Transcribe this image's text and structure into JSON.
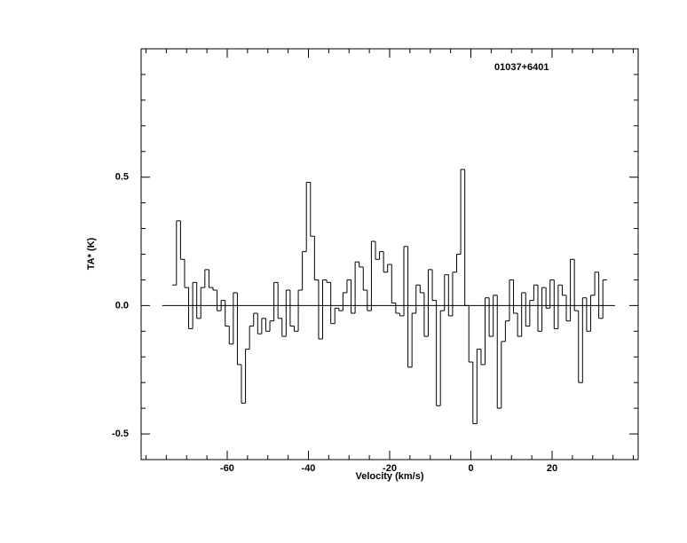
{
  "chart_data": {
    "type": "step",
    "title": "01037+6401",
    "xlabel": "Velocity (km/s)",
    "ylabel": "TA* (K)",
    "x": [
      -73,
      -72,
      -71,
      -70,
      -69,
      -68,
      -67,
      -66,
      -65,
      -64,
      -63,
      -62,
      -61,
      -60,
      -59,
      -58,
      -57,
      -56,
      -55,
      -54,
      -53,
      -52,
      -51,
      -50,
      -49,
      -48,
      -47,
      -46,
      -45,
      -44,
      -43,
      -42,
      -41,
      -40,
      -39,
      -38,
      -37,
      -36,
      -35,
      -34,
      -33,
      -32,
      -31,
      -30,
      -29,
      -28,
      -27,
      -26,
      -25,
      -24,
      -23,
      -22,
      -21,
      -20,
      -19,
      -18,
      -17,
      -16,
      -15,
      -14,
      -13,
      -12,
      -11,
      -10,
      -9,
      -8,
      -7,
      -6,
      -5,
      -4,
      -3,
      -2,
      -1,
      0,
      1,
      2,
      3,
      4,
      5,
      6,
      7,
      8,
      9,
      10,
      11,
      12,
      13,
      14,
      15,
      16,
      17,
      18,
      19,
      20,
      21,
      22,
      23,
      24,
      25,
      26,
      27,
      28,
      29,
      30,
      31,
      32,
      33
    ],
    "values": [
      0.08,
      0.33,
      0.18,
      0.07,
      -0.09,
      0.09,
      -0.05,
      0.07,
      0.14,
      0.07,
      0.06,
      -0.02,
      0.02,
      -0.08,
      -0.15,
      0.05,
      -0.23,
      -0.38,
      -0.17,
      -0.08,
      -0.03,
      -0.11,
      -0.05,
      -0.1,
      -0.06,
      0.09,
      -0.05,
      -0.12,
      0.06,
      -0.08,
      -0.1,
      0.06,
      0.21,
      0.48,
      0.27,
      0.1,
      -0.13,
      0.1,
      0.09,
      -0.07,
      -0.01,
      -0.02,
      0.05,
      0.1,
      -0.03,
      0.17,
      0.15,
      0.06,
      -0.02,
      0.25,
      0.18,
      0.21,
      0.13,
      0.16,
      0.01,
      -0.03,
      -0.04,
      0.23,
      -0.24,
      -0.03,
      0.08,
      0.05,
      -0.12,
      0.14,
      0.02,
      -0.39,
      -0.02,
      0.12,
      -0.04,
      0.13,
      0.2,
      0.53,
      0.0,
      -0.22,
      -0.46,
      -0.17,
      -0.23,
      0.03,
      -0.12,
      0.04,
      -0.4,
      -0.14,
      -0.06,
      0.1,
      -0.03,
      -0.12,
      0.05,
      -0.08,
      0.02,
      0.08,
      -0.1,
      0.07,
      -0.01,
      0.1,
      -0.09,
      0.08,
      0.04,
      -0.06,
      0.18,
      -0.02,
      -0.3,
      0.03,
      -0.1,
      0.04,
      0.13,
      -0.05,
      0.1
    ],
    "color": "#000000",
    "xlim": [
      -81.2,
      41.2
    ],
    "ylim": [
      -0.6,
      1.0
    ],
    "xticks": [
      -60,
      -40,
      -20,
      0,
      20
    ],
    "yticks": [
      -0.5,
      {
        "value": 0,
        "label": "0.0"
      },
      0.5
    ],
    "xminorticks": [
      -80,
      -75,
      -70,
      -65,
      -55,
      -50,
      -45,
      -35,
      -30,
      -25,
      -15,
      -10,
      -5,
      5,
      10,
      15,
      25,
      30,
      35,
      40
    ],
    "yminorticks": [
      -0.6,
      -0.4,
      -0.3,
      -0.2,
      -0.1,
      0.1,
      0.2,
      0.3,
      0.4,
      0.6,
      0.7,
      0.8,
      0.9
    ],
    "baseline": {
      "value": 0,
      "xrange": [
        -76,
        35.5
      ]
    }
  }
}
